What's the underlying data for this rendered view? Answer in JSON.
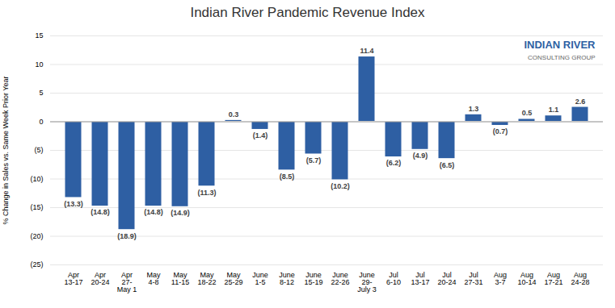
{
  "chart_data": {
    "type": "bar",
    "title": "Indian River Pandemic Revenue Index",
    "ylabel": "% Change in Sales vs. Same Week Prior Year",
    "categories": [
      "Apr\n13-17",
      "Apr\n20-24",
      "Apr\n27-\nMay 1",
      "May\n4-8",
      "May\n11-15",
      "May\n18-22",
      "May\n25-29",
      "June\n1-5",
      "June\n8-12",
      "June\n15-19",
      "June\n22-26",
      "June\n29-\nJuly 3",
      "Jul\n6-10",
      "Jul\n13-17",
      "Jul\n20-24",
      "Jul\n27-31",
      "Aug\n3-7",
      "Aug\n10-14",
      "Aug\n17-21",
      "Aug\n24-28"
    ],
    "values": [
      -13.3,
      -14.8,
      -18.9,
      -14.8,
      -14.9,
      -11.3,
      0.3,
      -1.4,
      -8.5,
      -5.7,
      -10.2,
      11.4,
      -6.2,
      -4.9,
      -6.5,
      1.3,
      -0.7,
      0.5,
      1.1,
      2.6
    ],
    "value_labels": [
      "(13.3)",
      "(14.8)",
      "(18.9)",
      "(14.8)",
      "(14.9)",
      "(11.3)",
      "0.3",
      "(1.4)",
      "(8.5)",
      "(5.7)",
      "(10.2)",
      "11.4",
      "(6.2)",
      "(4.9)",
      "(6.5)",
      "1.3",
      "(0.7)",
      "0.5",
      "1.1",
      "2.6"
    ],
    "data_labels": true,
    "color": "#2E5FA3",
    "ylim": [
      -25,
      15
    ],
    "yticks": [
      {
        "value": -25,
        "label": "(25)"
      },
      {
        "value": -20,
        "label": "(20)"
      },
      {
        "value": -15,
        "label": "(15)"
      },
      {
        "value": -10,
        "label": "(10)"
      },
      {
        "value": -5,
        "label": "(5)"
      },
      0,
      5,
      10,
      15
    ],
    "grid": true,
    "annotations": [
      "INDIAN RIVER",
      "CONSULTING GROUP"
    ]
  }
}
